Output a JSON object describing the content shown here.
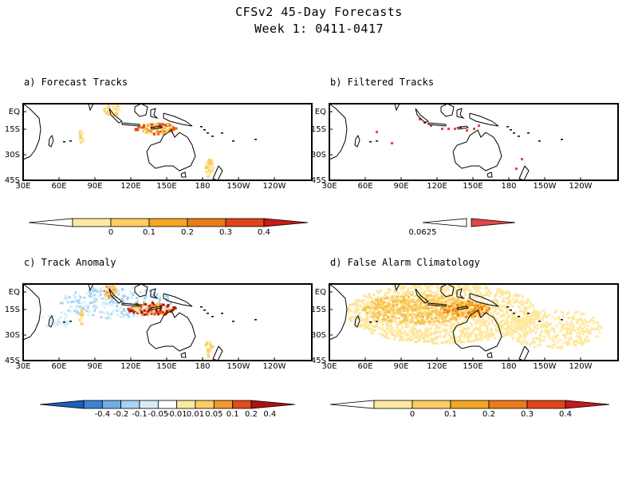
{
  "figure": {
    "title": "CFSv2 45-Day Forecasts",
    "subtitle": "Week 1: 0411-0417"
  },
  "axes": {
    "lon_ticks": [
      "30E",
      "60E",
      "90E",
      "120E",
      "150E",
      "180",
      "150W",
      "120W"
    ],
    "lat_ticks": [
      "EQ",
      "15S",
      "30S",
      "45S"
    ]
  },
  "panels": [
    {
      "title": "a) Forecast Tracks",
      "colorbar": {
        "ticks": [
          "0",
          "0.1",
          "0.2",
          "0.3",
          "0.4"
        ],
        "colors": [
          "#ffffff",
          "#ffe9a0",
          "#fbcd63",
          "#f5a623",
          "#ee7a1a",
          "#e0441a",
          "#c71a1a"
        ]
      }
    },
    {
      "title": "b) Filtered Tracks",
      "colorbar": {
        "ticks": [
          "0.0625"
        ],
        "colors": [
          "#ffffff",
          "#e24646"
        ]
      }
    },
    {
      "title": "c) Track Anomaly",
      "colorbar": {
        "ticks": [
          "-0.4",
          "-0.2",
          "-0.1",
          "-0.05",
          "-0.01",
          "0.01",
          "0.05",
          "0.1",
          "0.2",
          "0.4"
        ],
        "colors": [
          "#1c5fb8",
          "#3b83d4",
          "#71aee6",
          "#a8d4f2",
          "#d6eefa",
          "#ffffff",
          "#ffe9a0",
          "#fbcd63",
          "#f59a2a",
          "#e24a1a",
          "#b21010"
        ]
      }
    },
    {
      "title": "d) False Alarm Climatology",
      "colorbar": {
        "ticks": [
          "0",
          "0.1",
          "0.2",
          "0.3",
          "0.4"
        ],
        "colors": [
          "#ffffff",
          "#ffe9a0",
          "#fbcd63",
          "#f5a623",
          "#ee7a1a",
          "#e0441a",
          "#c71a1a"
        ]
      }
    }
  ]
}
